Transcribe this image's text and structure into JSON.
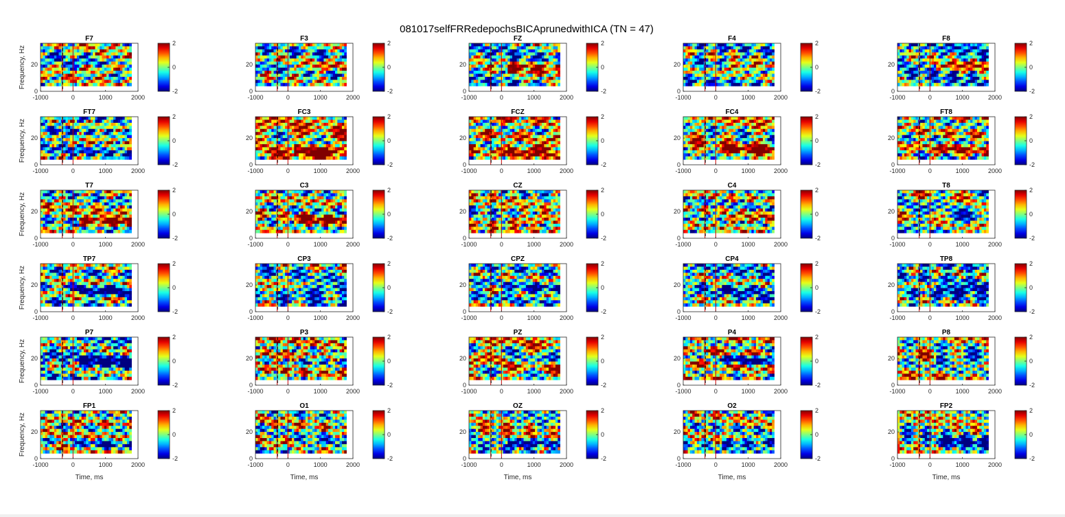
{
  "figure": {
    "title": "081017selfFRRedepochsBICAprunedwithICA (TN = 47)",
    "background": "#ffffff"
  },
  "chart_data": {
    "type": "heatmap",
    "layout": {
      "rows": 6,
      "cols": 5
    },
    "channels": [
      "F7",
      "F3",
      "FZ",
      "F4",
      "F8",
      "FT7",
      "FC3",
      "FCZ",
      "FC4",
      "FT8",
      "T7",
      "C3",
      "CZ",
      "C4",
      "T8",
      "TP7",
      "CP3",
      "CPZ",
      "CP4",
      "TP8",
      "P7",
      "P3",
      "PZ",
      "P4",
      "P8",
      "FP1",
      "O1",
      "OZ",
      "O2",
      "FP2"
    ],
    "xlabel": "Time, ms",
    "ylabel": "Frequency, Hz",
    "xlim": [
      -1000,
      2000
    ],
    "xticks": [
      -1000,
      0,
      1000,
      2000
    ],
    "ylim": [
      0,
      36
    ],
    "yticks": [
      0,
      20
    ],
    "data_xlim": [
      -1000,
      1800
    ],
    "data_ylim": [
      4,
      36
    ],
    "markers_ms": {
      "red": [
        -330,
        0
      ],
      "black_dashed": [
        -320
      ]
    },
    "marker_colors": {
      "red": "#cc0000",
      "black_dashed": "#000000"
    },
    "colorbar": {
      "clim": [
        -2,
        2
      ],
      "ticks": [
        2,
        0,
        -2
      ],
      "colormap": "jet"
    },
    "grid": false
  }
}
